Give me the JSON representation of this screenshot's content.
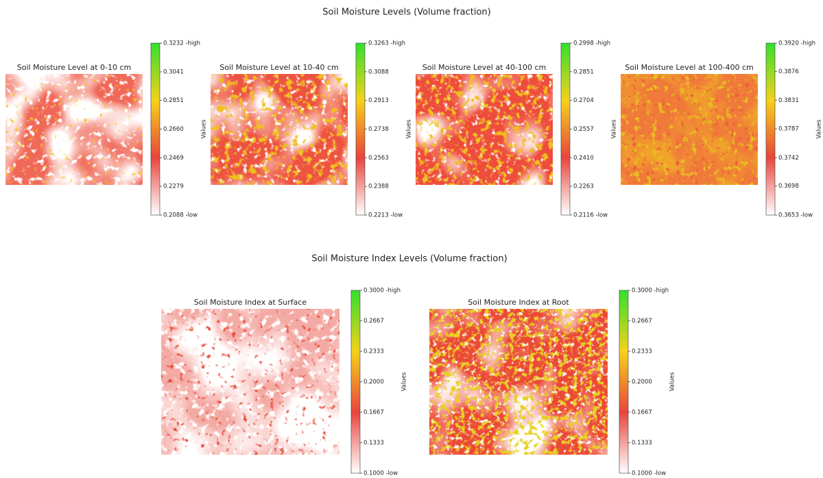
{
  "titles": [
    "Soil Moisture Levels (Volume fraction)",
    "Soil Moisture Index Levels (Volume fraction)"
  ],
  "colormap": [
    "#ffffff",
    "#e8453c",
    "#f5d21a",
    "#33e02e"
  ],
  "chart_data": [
    {
      "type": "heatmap",
      "title": "Soil Moisture Level at 0-10 cm",
      "colorbar_label": "Values",
      "clim": [
        0.2088,
        0.3232
      ],
      "cticks": [
        {
          "value": 0.2088,
          "label": "0.2088 -low"
        },
        0.2279,
        0.2469,
        {
          "value": 0.266,
          "label": "0.2660"
        },
        0.2851,
        0.3041,
        {
          "value": 0.3232,
          "label": "0.3232 -high"
        }
      ]
    },
    {
      "type": "heatmap",
      "title": "Soil Moisture Level at 10-40 cm",
      "colorbar_label": "Values",
      "clim": [
        0.2213,
        0.3263
      ],
      "cticks": [
        {
          "value": 0.2213,
          "label": "0.2213 -low"
        },
        0.2388,
        0.2563,
        0.2738,
        0.2913,
        0.3088,
        {
          "value": 0.3263,
          "label": "0.3263 -high"
        }
      ]
    },
    {
      "type": "heatmap",
      "title": "Soil Moisture Level at 40-100 cm",
      "colorbar_label": "Values",
      "clim": [
        0.2116,
        0.2998
      ],
      "cticks": [
        {
          "value": 0.2116,
          "label": "0.2116 -low"
        },
        0.2263,
        {
          "value": 0.241,
          "label": "0.2410"
        },
        0.2557,
        0.2704,
        0.2851,
        {
          "value": 0.2998,
          "label": "0.2998 -high"
        }
      ]
    },
    {
      "type": "heatmap",
      "title": "Soil Moisture Level at 100-400 cm",
      "colorbar_label": "Values",
      "clim": [
        0.3653,
        0.392
      ],
      "cticks": [
        {
          "value": 0.3653,
          "label": "0.3653 -low"
        },
        0.3698,
        0.3742,
        0.3787,
        0.3831,
        0.3876,
        {
          "value": 0.392,
          "label": "0.3920 -high"
        }
      ]
    },
    {
      "type": "heatmap",
      "title": "Soil Moisture Index at Surface",
      "colorbar_label": "Values",
      "clim": [
        0.1,
        0.3
      ],
      "cticks": [
        {
          "value": 0.1,
          "label": "0.1000 -low"
        },
        0.1333,
        0.1667,
        {
          "value": 0.2,
          "label": "0.2000"
        },
        0.2333,
        0.2667,
        {
          "value": 0.3,
          "label": "0.3000 -high"
        }
      ]
    },
    {
      "type": "heatmap",
      "title": "Soil Moisture Index at Root",
      "colorbar_label": "Values",
      "clim": [
        0.1,
        0.3
      ],
      "cticks": [
        {
          "value": 0.1,
          "label": "0.1000 -low"
        },
        0.1333,
        0.1667,
        {
          "value": 0.2,
          "label": "0.2000"
        },
        0.2333,
        0.2667,
        {
          "value": 0.3,
          "label": "0.3000 -high"
        }
      ]
    }
  ]
}
